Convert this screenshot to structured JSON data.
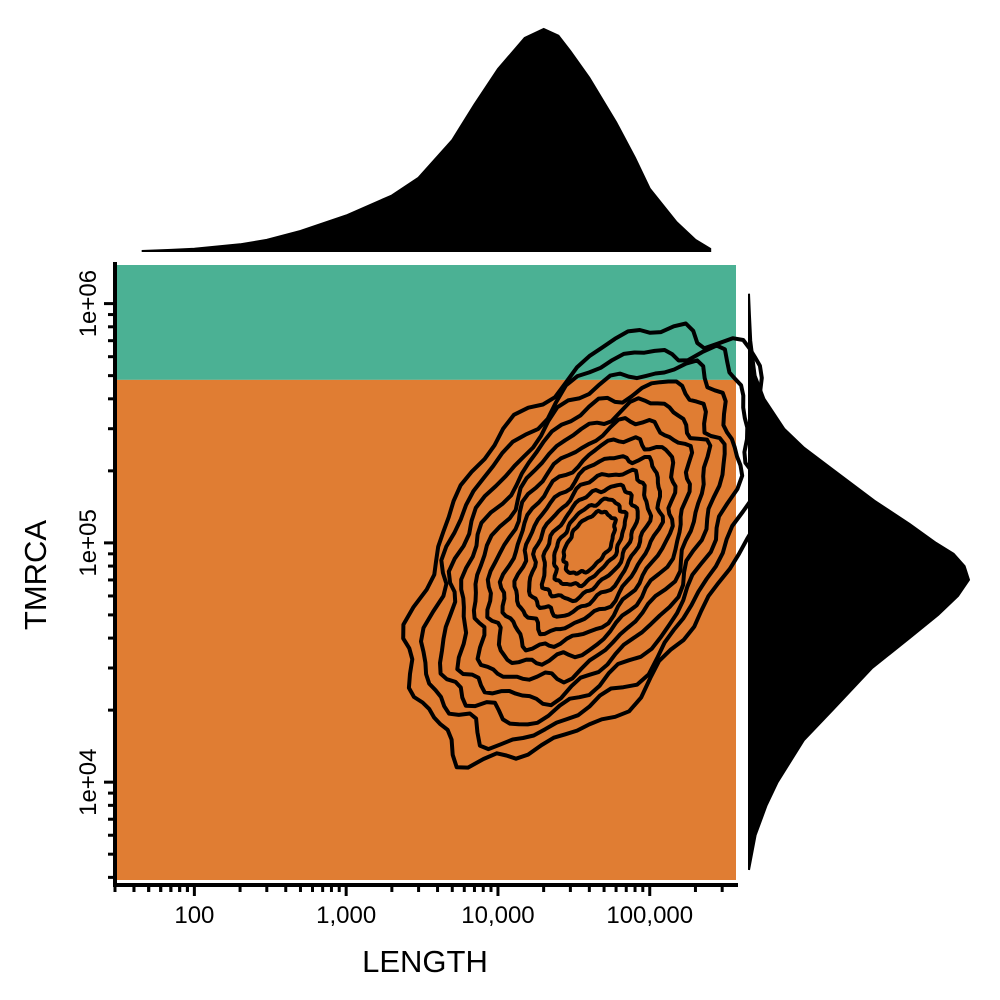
{
  "chart_data": {
    "type": "scatter",
    "subtype": "2d-density-contour-with-marginal-densities",
    "title": "",
    "xlabel": "LENGTH",
    "ylabel": "TMRCA",
    "x_scale": "log10",
    "y_scale": "log10",
    "xlim": [
      30,
      370000
    ],
    "ylim": [
      3900,
      1450000
    ],
    "x_ticks": [
      {
        "value": 100,
        "label": "100"
      },
      {
        "value": 1000,
        "label": "1,000"
      },
      {
        "value": 10000,
        "label": "10,000"
      },
      {
        "value": 100000,
        "label": "100,000"
      }
    ],
    "y_ticks": [
      {
        "value": 10000,
        "label": "1e+04"
      },
      {
        "value": 100000,
        "label": "1e+05"
      },
      {
        "value": 1000000,
        "label": "1e+06"
      }
    ],
    "background_bands": [
      {
        "y_from": 480000,
        "y_to": 1450000,
        "color": "#4bb194"
      },
      {
        "y_from": 3900,
        "y_to": 480000,
        "color": "#e07d33"
      }
    ],
    "density_peak": {
      "x": 40000,
      "y": 100000
    },
    "contour_levels": 12,
    "x_marginal_density": {
      "x": [
        45,
        70,
        100,
        200,
        300,
        500,
        1000,
        2000,
        3000,
        5000,
        7000,
        10000,
        15000,
        20000,
        25000,
        30000,
        40000,
        60000,
        80000,
        100000,
        150000,
        200000,
        250000
      ],
      "density": [
        0.0,
        0.005,
        0.01,
        0.03,
        0.05,
        0.09,
        0.16,
        0.25,
        0.33,
        0.5,
        0.66,
        0.82,
        0.96,
        1.0,
        0.97,
        0.9,
        0.78,
        0.58,
        0.42,
        0.28,
        0.13,
        0.05,
        0.01
      ]
    },
    "y_marginal_density": {
      "y": [
        4300,
        6000,
        8000,
        10000,
        15000,
        20000,
        30000,
        40000,
        50000,
        60000,
        70000,
        80000,
        90000,
        100000,
        120000,
        150000,
        200000,
        250000,
        300000,
        400000,
        500000,
        700000,
        900000,
        1100000
      ],
      "density": [
        0.0,
        0.03,
        0.08,
        0.13,
        0.25,
        0.38,
        0.56,
        0.73,
        0.86,
        0.95,
        1.0,
        0.98,
        0.93,
        0.85,
        0.73,
        0.57,
        0.39,
        0.25,
        0.16,
        0.07,
        0.03,
        0.01,
        0.004,
        0.0
      ]
    }
  }
}
